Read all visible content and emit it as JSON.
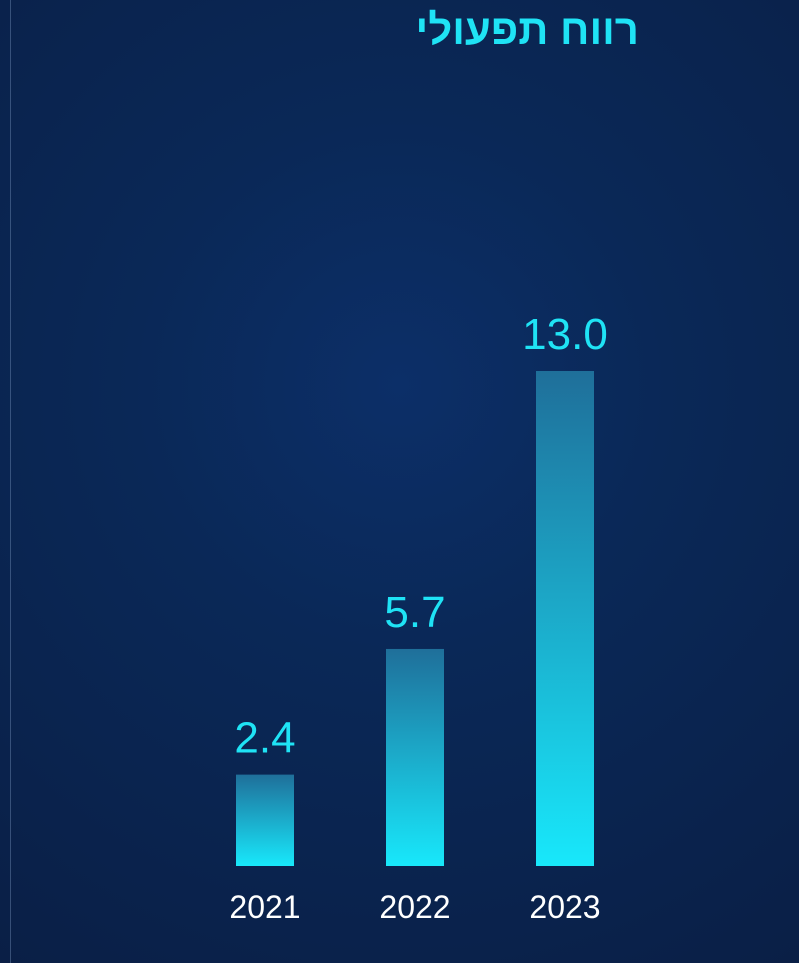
{
  "chart_data": {
    "type": "bar",
    "title": "רווח תפעולי",
    "categories": [
      "2021",
      "2022",
      "2023"
    ],
    "values": [
      2.4,
      5.7,
      13.0
    ],
    "value_labels": [
      "2.4",
      "5.7",
      "13.0"
    ],
    "xlabel": "",
    "ylabel": "",
    "ylim": [
      0,
      13.0
    ],
    "grid": false,
    "colors": {
      "bar_top": "#1f6f9a",
      "bar_bottom": "#18e8fb",
      "value_text": "#1fe3f5",
      "tick_text": "#ffffff",
      "title_text": "#1fe3f5"
    }
  }
}
